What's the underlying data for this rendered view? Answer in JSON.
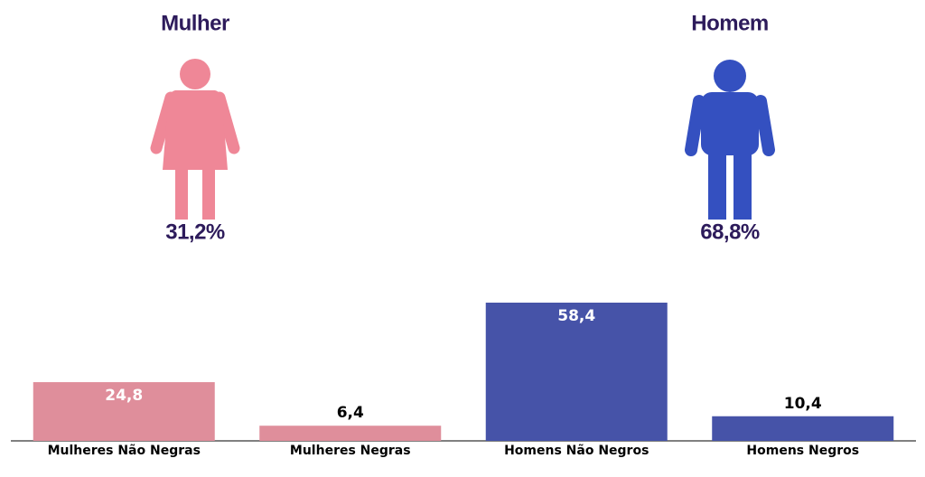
{
  "chart_data": [
    {
      "type": "pictogram",
      "categories": [
        "Mulher",
        "Homem"
      ],
      "values": [
        31.2,
        68.8
      ],
      "value_labels": [
        "31,2%",
        "68,8%"
      ],
      "colors": [
        "#ef8797",
        "#3450c0"
      ]
    },
    {
      "type": "bar",
      "categories": [
        "Mulheres Não Negras",
        "Mulheres Negras",
        "Homens Não Negros",
        "Homens Negros"
      ],
      "values": [
        24.8,
        6.4,
        58.4,
        10.4
      ],
      "value_labels": [
        "24,8",
        "6,4",
        "58,4",
        "10,4"
      ],
      "colors": [
        "#df8e9b",
        "#df8e9b",
        "#4653a8",
        "#4653a8"
      ]
    }
  ]
}
